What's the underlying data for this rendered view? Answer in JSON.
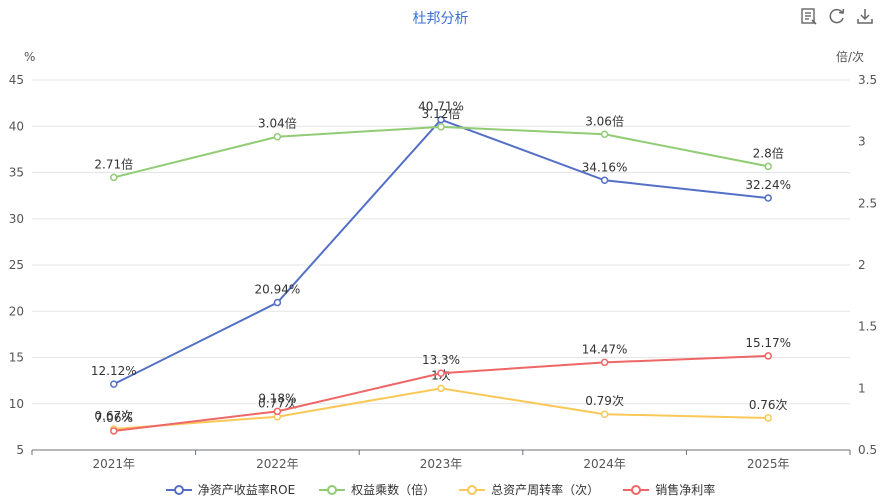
{
  "title": "杜邦分析",
  "toolbar": {
    "icons": [
      "data-view-icon",
      "refresh-icon",
      "download-icon"
    ]
  },
  "chart_data": {
    "type": "line",
    "title": "杜邦分析",
    "categories": [
      "2021年",
      "2022年",
      "2023年",
      "2024年",
      "2025年"
    ],
    "left_axis": {
      "unit": "%",
      "range": [
        5,
        45
      ],
      "ticks": [
        "5",
        "10",
        "15",
        "20",
        "25",
        "30",
        "35",
        "40",
        "45"
      ]
    },
    "right_axis": {
      "unit": "倍/次",
      "range": [
        0.5,
        3.5
      ],
      "ticks": [
        "0.5",
        "1",
        "1.5",
        "2",
        "2.5",
        "3",
        "3.5"
      ]
    },
    "grid": true,
    "legend_position": "bottom",
    "series": [
      {
        "name": "净资产收益率ROE",
        "axis": "left",
        "color": "#5470c6",
        "values": [
          12.12,
          20.94,
          40.71,
          34.16,
          32.24
        ],
        "labels": [
          "12.12%",
          "20.94%",
          "40.71%",
          "34.16%",
          "32.24%"
        ]
      },
      {
        "name": "权益乘数（倍）",
        "axis": "right",
        "color": "#91cc75",
        "values": [
          2.71,
          3.04,
          3.12,
          3.06,
          2.8
        ],
        "labels": [
          "2.71倍",
          "3.04倍",
          "3.12倍",
          "3.06倍",
          "2.8倍"
        ]
      },
      {
        "name": "总资产周转率（次）",
        "axis": "right",
        "color": "#fac858",
        "values": [
          0.67,
          0.77,
          1.0,
          0.79,
          0.76
        ],
        "labels": [
          "0.67次",
          "0.77次",
          "1次",
          "0.79次",
          "0.76次"
        ]
      },
      {
        "name": "销售净利率",
        "axis": "left",
        "color": "#ee6666",
        "values": [
          7.06,
          9.18,
          13.3,
          14.47,
          15.17
        ],
        "labels": [
          "7.06%",
          "9.18%",
          "13.3%",
          "14.47%",
          "15.17%"
        ]
      }
    ]
  }
}
